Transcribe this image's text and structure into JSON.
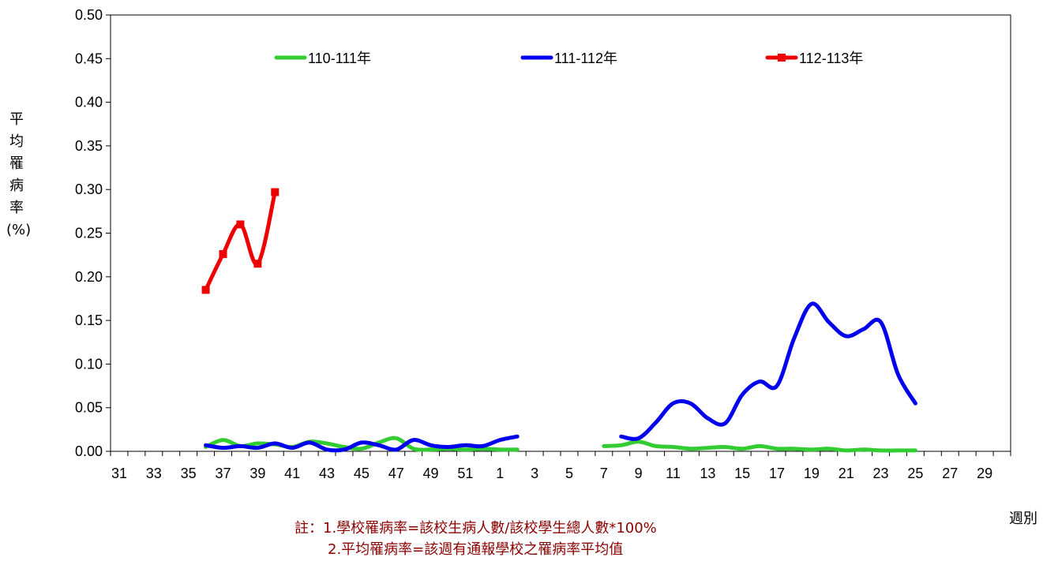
{
  "chart_data": {
    "type": "line",
    "ylabel": "平均罹病率(%)",
    "xlabel": "週別",
    "ylim": [
      0,
      0.5
    ],
    "yticks": [
      "0.00",
      "0.05",
      "0.10",
      "0.15",
      "0.20",
      "0.25",
      "0.30",
      "0.35",
      "0.40",
      "0.45",
      "0.50"
    ],
    "x_week_order": [
      31,
      32,
      33,
      34,
      35,
      36,
      37,
      38,
      39,
      40,
      41,
      42,
      43,
      44,
      45,
      46,
      47,
      48,
      49,
      50,
      51,
      52,
      1,
      2,
      3,
      4,
      5,
      6,
      7,
      8,
      9,
      10,
      11,
      12,
      13,
      14,
      15,
      16,
      17,
      18,
      19,
      20,
      21,
      22,
      23,
      24,
      25,
      26,
      27,
      28,
      29,
      30
    ],
    "xtick_labels": [
      "31",
      "33",
      "35",
      "37",
      "39",
      "41",
      "43",
      "45",
      "47",
      "49",
      "51",
      "1",
      "3",
      "5",
      "7",
      "9",
      "11",
      "13",
      "15",
      "17",
      "19",
      "21",
      "23",
      "25",
      "27",
      "29"
    ],
    "legend_position": "top",
    "grid": false,
    "series": [
      {
        "name": "110-111年",
        "color": "#33cc33",
        "marker": "none",
        "points": [
          [
            36,
            0.005
          ],
          [
            37,
            0.013
          ],
          [
            38,
            0.006
          ],
          [
            39,
            0.009
          ],
          [
            40,
            0.008
          ],
          [
            41,
            0.005
          ],
          [
            42,
            0.011
          ],
          [
            43,
            0.009
          ],
          [
            44,
            0.005
          ],
          [
            45,
            0.003
          ],
          [
            46,
            0.01
          ],
          [
            47,
            0.015
          ],
          [
            48,
            0.003
          ],
          [
            49,
            0.002
          ],
          [
            50,
            0.003
          ],
          [
            51,
            0.002
          ],
          [
            52,
            0.003
          ],
          [
            1,
            0.002
          ],
          [
            2,
            0.002
          ],
          [
            7,
            0.006
          ],
          [
            8,
            0.007
          ],
          [
            9,
            0.011
          ],
          [
            10,
            0.006
          ],
          [
            11,
            0.005
          ],
          [
            12,
            0.003
          ],
          [
            13,
            0.004
          ],
          [
            14,
            0.005
          ],
          [
            15,
            0.003
          ],
          [
            16,
            0.006
          ],
          [
            17,
            0.003
          ],
          [
            18,
            0.003
          ],
          [
            19,
            0.002
          ],
          [
            20,
            0.003
          ],
          [
            21,
            0.001
          ],
          [
            22,
            0.002
          ],
          [
            23,
            0.001
          ],
          [
            24,
            0.001
          ],
          [
            25,
            0.001
          ]
        ]
      },
      {
        "name": "111-112年",
        "color": "#0000ee",
        "marker": "none",
        "points": [
          [
            36,
            0.007
          ],
          [
            37,
            0.004
          ],
          [
            38,
            0.006
          ],
          [
            39,
            0.004
          ],
          [
            40,
            0.009
          ],
          [
            41,
            0.004
          ],
          [
            42,
            0.01
          ],
          [
            43,
            0.002
          ],
          [
            44,
            0.002
          ],
          [
            45,
            0.01
          ],
          [
            46,
            0.007
          ],
          [
            47,
            0.002
          ],
          [
            48,
            0.013
          ],
          [
            49,
            0.007
          ],
          [
            50,
            0.005
          ],
          [
            51,
            0.007
          ],
          [
            52,
            0.006
          ],
          [
            1,
            0.013
          ],
          [
            2,
            0.017
          ],
          [
            8,
            0.017
          ],
          [
            9,
            0.015
          ],
          [
            10,
            0.033
          ],
          [
            11,
            0.055
          ],
          [
            12,
            0.055
          ],
          [
            13,
            0.038
          ],
          [
            14,
            0.032
          ],
          [
            15,
            0.065
          ],
          [
            16,
            0.08
          ],
          [
            17,
            0.075
          ],
          [
            18,
            0.13
          ],
          [
            19,
            0.169
          ],
          [
            20,
            0.148
          ],
          [
            21,
            0.132
          ],
          [
            22,
            0.14
          ],
          [
            23,
            0.148
          ],
          [
            24,
            0.088
          ],
          [
            25,
            0.055
          ]
        ]
      },
      {
        "name": "112-113年",
        "color": "#ee0000",
        "marker": "square",
        "points": [
          [
            36,
            0.185
          ],
          [
            37,
            0.226
          ],
          [
            38,
            0.26
          ],
          [
            39,
            0.215
          ],
          [
            40,
            0.297
          ]
        ]
      }
    ],
    "notes": [
      "註：1.學校罹病率=該校生病人數/該校學生總人數*100%",
      "2.平均罹病率=該週有通報學校之罹病率平均值"
    ]
  }
}
